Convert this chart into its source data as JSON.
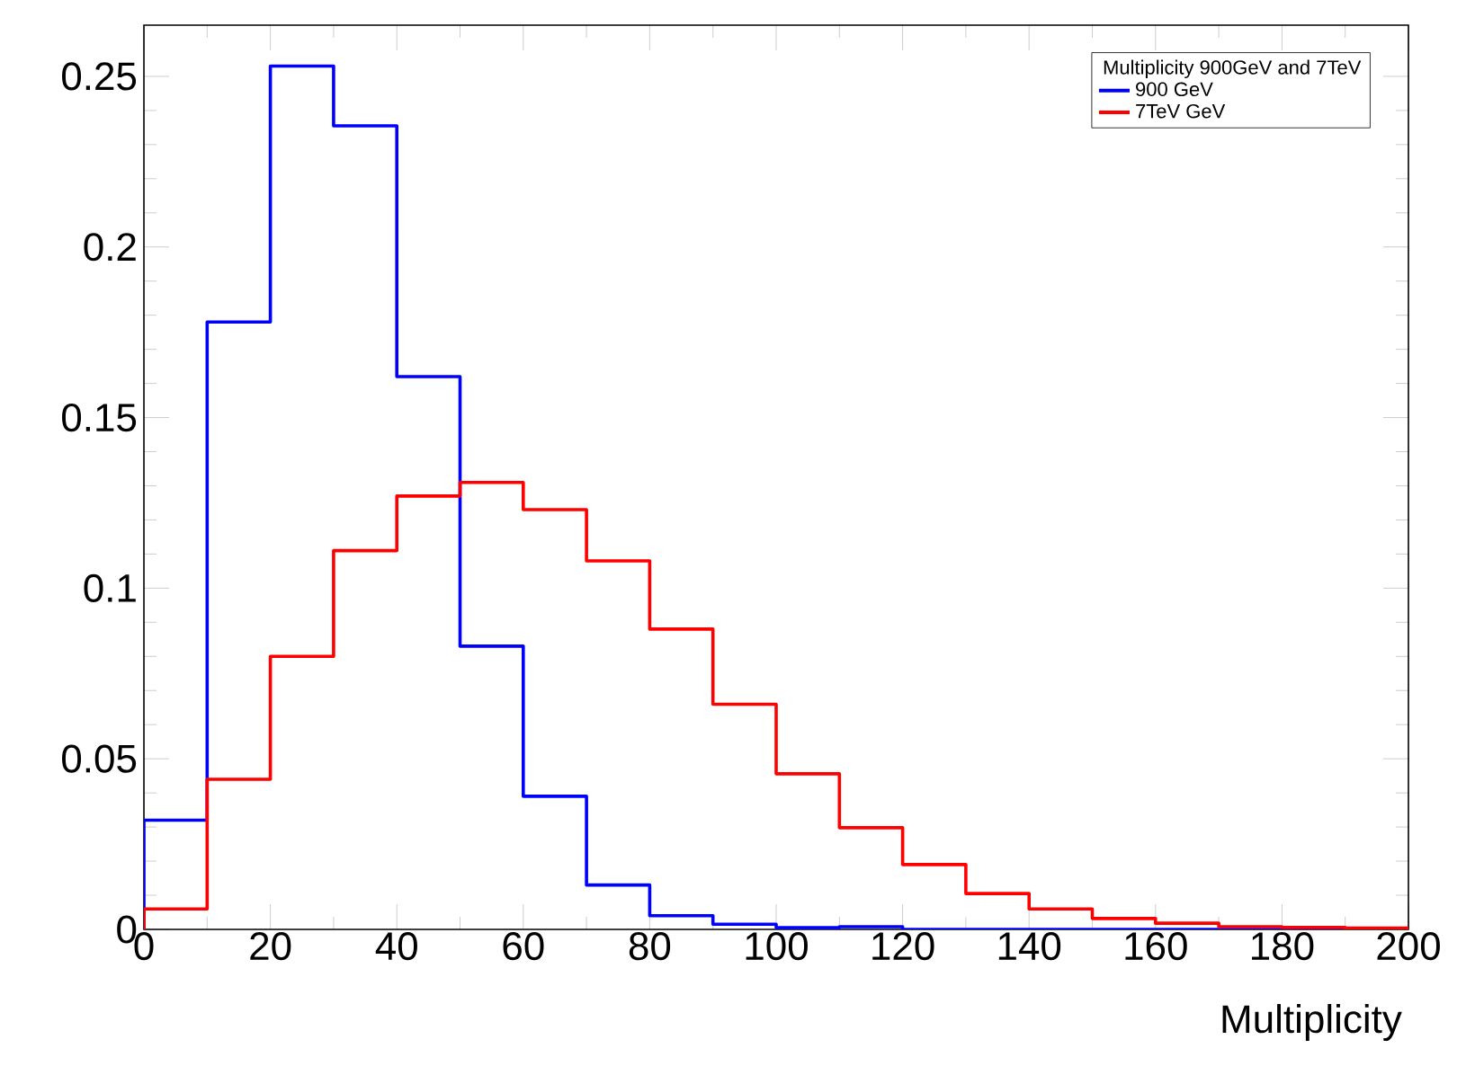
{
  "chart_data": {
    "type": "histogram",
    "xlabel": "Multiplicity",
    "legend_title": "Multiplicity 900GeV and 7TeV",
    "legend": "top right",
    "bins": [
      0,
      10,
      20,
      30,
      40,
      50,
      60,
      70,
      80,
      90,
      100,
      110,
      120,
      130,
      140,
      150,
      160,
      170,
      180,
      190,
      200
    ],
    "series": [
      {
        "name": "900 GeV",
        "color": "#0000ff",
        "values": [
          0.032,
          0.178,
          0.253,
          0.2355,
          0.162,
          0.083,
          0.039,
          0.013,
          0.004,
          0.0015,
          0.0005,
          0.0008,
          0,
          0,
          0,
          0,
          0,
          0,
          0,
          0
        ]
      },
      {
        "name": "7TeV GeV",
        "color": "#ff0000",
        "values": [
          0.006,
          0.044,
          0.08,
          0.111,
          0.127,
          0.131,
          0.123,
          0.108,
          0.088,
          0.066,
          0.0456,
          0.0298,
          0.019,
          0.0105,
          0.006,
          0.0032,
          0.0018,
          0.0008,
          0.0006,
          0.0004
        ]
      }
    ],
    "xlim": [
      0,
      200
    ],
    "ylim": [
      0,
      0.265
    ],
    "xticks": [
      0,
      20,
      40,
      60,
      80,
      100,
      120,
      140,
      160,
      180,
      200
    ],
    "yticks": [
      0,
      0.05,
      0.1,
      0.15,
      0.2,
      0.25
    ]
  }
}
